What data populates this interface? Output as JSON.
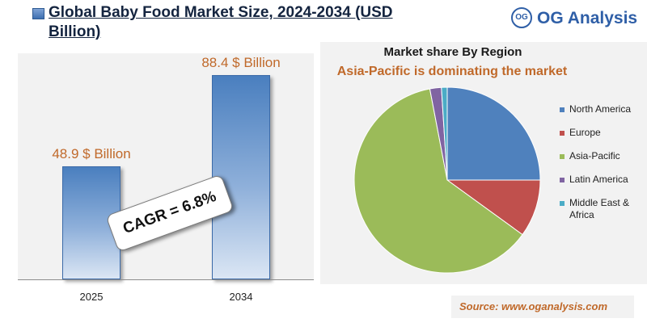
{
  "header": {
    "title": "Global Baby Food Market Size, 2024-2034 (USD Billion)",
    "logo_mark": "OG",
    "logo_text": "OG Analysis"
  },
  "cagr_label": "CAGR = 6.8%",
  "source": "Source: www.oganalysis.com",
  "colors": {
    "accent_orange": "#c0692a",
    "bar_blue": "#4a7fbf",
    "brand_blue": "#2f5fa7"
  },
  "chart_data": [
    {
      "type": "bar",
      "title": "Global Baby Food Market Size, 2024-2034 (USD Billion)",
      "categories": [
        "2025",
        "2034"
      ],
      "values": [
        48.9,
        88.4
      ],
      "data_labels": [
        "48.9 $ Billion",
        "88.4 $ Billion"
      ],
      "ylim": [
        0,
        100
      ],
      "xlabel": "",
      "ylabel": "",
      "grid": false
    },
    {
      "type": "pie",
      "title": "Market share By Region",
      "subtitle": "Asia-Pacific is dominating the market",
      "categories": [
        "North America",
        "Europe",
        "Asia-Pacific",
        "Latin America",
        "Middle East & Africa"
      ],
      "values": [
        25,
        10,
        62,
        2,
        1
      ],
      "colors": [
        "#4f81bd",
        "#c0504d",
        "#9bbb59",
        "#8064a2",
        "#4bacc6"
      ],
      "legend_position": "right"
    }
  ]
}
